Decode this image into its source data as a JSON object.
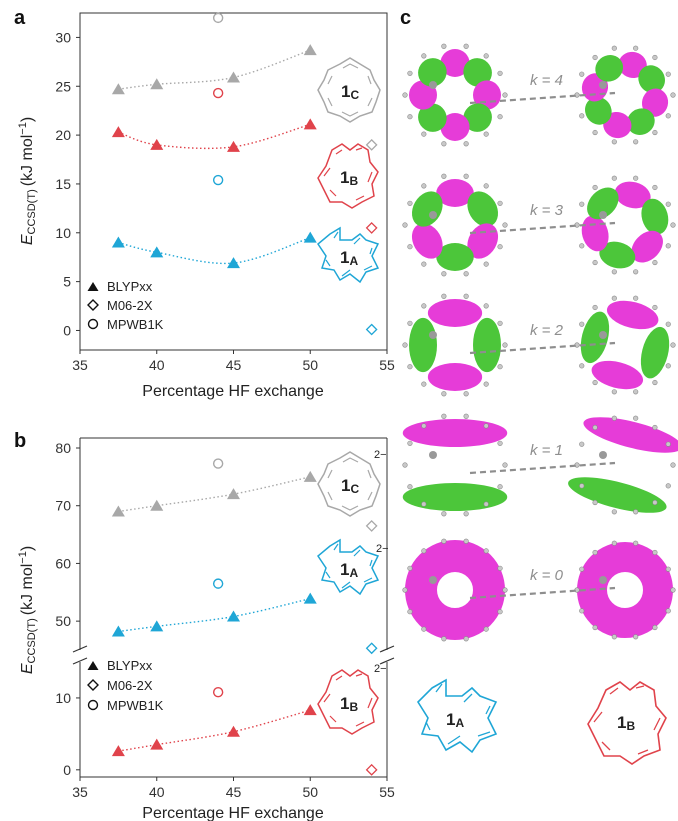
{
  "panels": {
    "a": "a",
    "b": "b",
    "c": "c"
  },
  "colors": {
    "gray": "#a8a8a8",
    "red": "#e0434b",
    "blue": "#1fa6d6",
    "magenta": "#e63cd8",
    "green": "#4cc63a"
  },
  "chart_data": [
    {
      "type": "scatter",
      "panel": "a",
      "xlabel": "Percentage HF exchange",
      "ylabel_main": "E",
      "ylabel_sub": "CCSD(T)",
      "ylabel_unit": "(kJ mol",
      "ylabel_exp": "−1",
      "ylabel_close": ")",
      "xlim": [
        35,
        55
      ],
      "ylim": [
        -2,
        32.5
      ],
      "xticks": [
        "35",
        "40",
        "45",
        "50",
        "55"
      ],
      "yticks": [
        "0",
        "5",
        "10",
        "15",
        "20",
        "25",
        "30"
      ],
      "legend": {
        "blyp": "BLYPxx",
        "m06": "M06-2X",
        "mpw": "MPWB1K",
        "placement": "bottom-left"
      },
      "series": [
        {
          "molecule": "1C",
          "color": "gray",
          "blyp": [
            [
              37.5,
              24.7
            ],
            [
              40,
              25.2
            ],
            [
              45,
              25.9
            ],
            [
              50,
              28.7
            ]
          ],
          "mpwb1k": [
            44,
            32.0
          ],
          "m06": [
            54,
            19.0
          ]
        },
        {
          "molecule": "1B",
          "color": "red",
          "blyp": [
            [
              37.5,
              20.3
            ],
            [
              40,
              19.0
            ],
            [
              45,
              18.8
            ],
            [
              50,
              21.1
            ]
          ],
          "mpwb1k": [
            44,
            24.3
          ],
          "m06": [
            54,
            10.5
          ]
        },
        {
          "molecule": "1A",
          "color": "blue",
          "blyp": [
            [
              37.5,
              9.0
            ],
            [
              40,
              8.0
            ],
            [
              45,
              6.9
            ],
            [
              50,
              9.5
            ]
          ],
          "mpwb1k": [
            44,
            15.4
          ],
          "m06": [
            54,
            0.1
          ]
        }
      ],
      "mol_labels": [
        {
          "num": "1",
          "sub": "C",
          "charge": "",
          "color": "gray"
        },
        {
          "num": "1",
          "sub": "B",
          "charge": "",
          "color": "red"
        },
        {
          "num": "1",
          "sub": "A",
          "charge": "",
          "color": "blue"
        }
      ]
    },
    {
      "type": "scatter",
      "panel": "b",
      "xlabel": "Percentage HF exchange",
      "ylabel_main": "E",
      "ylabel_sub": "CCSD(T)",
      "ylabel_unit": "(kJ mol",
      "ylabel_exp": "−1",
      "ylabel_close": ")",
      "xlim": [
        35,
        55
      ],
      "broken_axis": true,
      "upper_ylim": [
        45,
        80
      ],
      "lower_ylim": [
        -1,
        15
      ],
      "xticks": [
        "35",
        "40",
        "45",
        "50",
        "55"
      ],
      "upper_yticks": [
        "50",
        "60",
        "70",
        "80"
      ],
      "lower_yticks": [
        "0",
        "10"
      ],
      "legend": {
        "blyp": "BLYPxx",
        "m06": "M06-2X",
        "mpw": "MPWB1K",
        "placement": "bottom-left"
      },
      "series": [
        {
          "molecule": "1C",
          "color": "gray",
          "blyp": [
            [
              37.5,
              69.0
            ],
            [
              40,
              70.0
            ],
            [
              45,
              72.0
            ],
            [
              50,
              75.0
            ]
          ],
          "mpwb1k": [
            44,
            77.3
          ],
          "m06": [
            54,
            66.5
          ]
        },
        {
          "molecule": "1A",
          "color": "blue",
          "blyp": [
            [
              37.5,
              48.2
            ],
            [
              40,
              49.1
            ],
            [
              45,
              50.8
            ],
            [
              50,
              53.9
            ]
          ],
          "mpwb1k": [
            44,
            56.5
          ],
          "m06": [
            54,
            45.3
          ]
        },
        {
          "molecule": "1B",
          "color": "red",
          "blyp": [
            [
              37.5,
              2.6
            ],
            [
              40,
              3.5
            ],
            [
              45,
              5.3
            ],
            [
              50,
              8.3
            ]
          ],
          "mpwb1k": [
            44,
            10.8
          ],
          "m06": [
            54,
            0.0
          ]
        }
      ],
      "mol_labels": [
        {
          "num": "1",
          "sub": "C",
          "charge": "2−",
          "color": "gray"
        },
        {
          "num": "1",
          "sub": "A",
          "charge": "2−",
          "color": "blue"
        },
        {
          "num": "1",
          "sub": "B",
          "charge": "2−",
          "color": "red"
        }
      ]
    }
  ],
  "orbitals": {
    "k_labels": [
      "k = 4",
      "k = 3",
      "k = 2",
      "k = 1",
      "k = 0"
    ],
    "k_var": "k",
    "k_values": [
      "4",
      "3",
      "2",
      "1",
      "0"
    ],
    "bottom_labels": [
      {
        "num": "1",
        "sub": "A",
        "color": "blue"
      },
      {
        "num": "1",
        "sub": "B",
        "color": "red"
      }
    ]
  }
}
